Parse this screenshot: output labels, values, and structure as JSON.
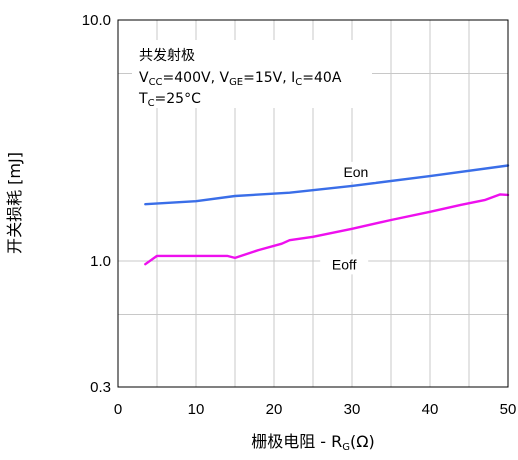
{
  "chart_data": {
    "type": "line",
    "title": "",
    "xlabel": "栅极电阻 - R",
    "xlabel_sub": "G",
    "xlabel_suffix": "(Ω)",
    "ylabel": "开关损耗 [mJ]",
    "xlim": [
      0,
      50
    ],
    "ylim": [
      0.3,
      10.0
    ],
    "yscale": "log",
    "x_ticks": [
      "0",
      "10",
      "20",
      "30",
      "40",
      "50"
    ],
    "y_ticks": [
      {
        "value": 10.0,
        "label": "10.0"
      },
      {
        "value": 1.0,
        "label": "1.0"
      },
      {
        "value": 0.3,
        "label": "0.3"
      }
    ],
    "grid": true,
    "annotation": {
      "line1": "共发射极",
      "line2": [
        {
          "t": "V",
          "s": false
        },
        {
          "t": "CC",
          "s": true
        },
        {
          "t": "=400V, V",
          "s": false
        },
        {
          "t": "GE",
          "s": true
        },
        {
          "t": "=15V, I",
          "s": false
        },
        {
          "t": "C",
          "s": true
        },
        {
          "t": "=40A",
          "s": false
        }
      ],
      "line3": [
        {
          "t": "T",
          "s": false
        },
        {
          "t": "C",
          "s": true
        },
        {
          "t": "=25°C",
          "s": false
        }
      ]
    },
    "series": [
      {
        "name": "Eon",
        "color": "#3a6ee8",
        "x": [
          3.5,
          10,
          15,
          22,
          30,
          40,
          50
        ],
        "y": [
          1.72,
          1.77,
          1.86,
          1.92,
          2.05,
          2.25,
          2.49
        ]
      },
      {
        "name": "Eoff",
        "color": "#ee10ee",
        "x": [
          3.5,
          5,
          10,
          14,
          15,
          18,
          21,
          22,
          25,
          30,
          35,
          40,
          44,
          47,
          49,
          50
        ],
        "y": [
          0.97,
          1.05,
          1.05,
          1.05,
          1.03,
          1.11,
          1.18,
          1.22,
          1.26,
          1.36,
          1.48,
          1.6,
          1.71,
          1.79,
          1.89,
          1.88
        ]
      }
    ]
  }
}
